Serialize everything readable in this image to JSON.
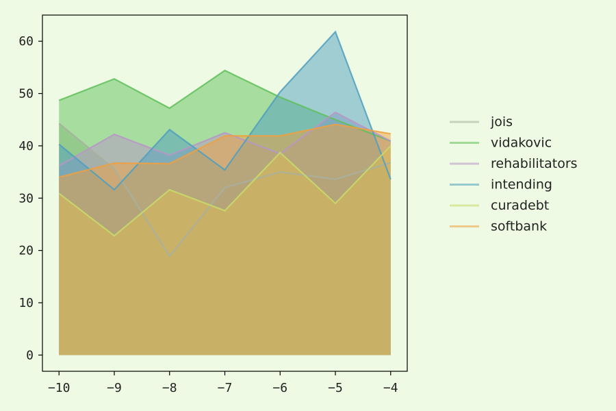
{
  "chart_data": {
    "type": "area",
    "title": "",
    "xlabel": "",
    "ylabel": "",
    "x": [
      -10,
      -9,
      -8,
      -7,
      -6,
      -5,
      -4
    ],
    "xlim": [
      -10.3,
      -3.7
    ],
    "ylim": [
      -3.1,
      65
    ],
    "xticks": [
      -10,
      -9,
      -8,
      -7,
      -6,
      -5,
      -4
    ],
    "yticks": [
      0,
      10,
      20,
      30,
      40,
      50,
      60
    ],
    "xtick_labels": [
      "−10",
      "−9",
      "−8",
      "−7",
      "−6",
      "−5",
      "−4"
    ],
    "ytick_labels": [
      "0",
      "10",
      "20",
      "30",
      "40",
      "50",
      "60"
    ],
    "grid": false,
    "stacked": false,
    "legend_position": "right",
    "series": [
      {
        "name": "jois",
        "color": "#a8b0a0",
        "values": [
          44.3,
          35.6,
          18.9,
          32.0,
          35.0,
          33.6,
          36.8
        ]
      },
      {
        "name": "vidakovic",
        "color": "#5fbf5a",
        "values": [
          48.7,
          52.8,
          47.2,
          54.4,
          49.3,
          45.0,
          40.9
        ]
      },
      {
        "name": "rehabilitators",
        "color": "#b895c8",
        "values": [
          36.2,
          42.2,
          38.2,
          42.5,
          38.5,
          46.4,
          40.9
        ]
      },
      {
        "name": "intending",
        "color": "#4f9fc0",
        "values": [
          40.3,
          31.6,
          43.1,
          35.4,
          50.3,
          61.8,
          33.6
        ]
      },
      {
        "name": "curadebt",
        "color": "#c8dc6a",
        "values": [
          30.9,
          22.8,
          31.6,
          27.6,
          38.7,
          29.0,
          40.0
        ]
      },
      {
        "name": "softbank",
        "color": "#f0a040",
        "values": [
          34.0,
          36.7,
          36.6,
          41.9,
          41.9,
          44.1,
          42.3
        ]
      }
    ]
  }
}
